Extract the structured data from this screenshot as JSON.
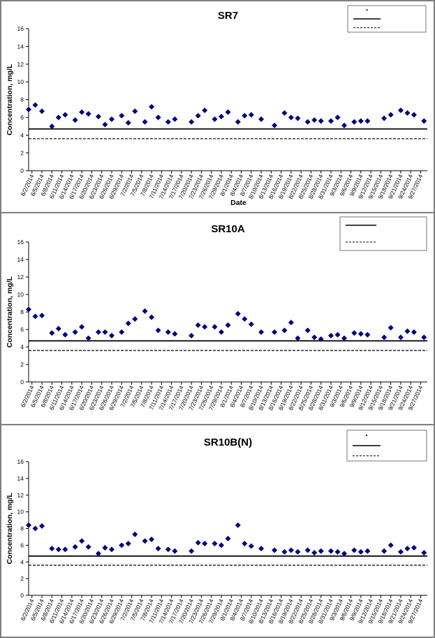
{
  "colors": {
    "marker": "#000080",
    "line": "#000000",
    "frame": "#7f7f7f"
  },
  "chart_data": [
    {
      "type": "scatter",
      "title": "SR7",
      "xlabel": "Date",
      "ylabel": "Concentration, mg/L",
      "ylim": [
        0,
        16
      ],
      "yticks": [
        0,
        2,
        4,
        6,
        8,
        10,
        12,
        14,
        16
      ],
      "x_tick_labels": [
        "6/2/2014",
        "6/5/2014",
        "6/8/2014",
        "6/11/2014",
        "6/14/2014",
        "6/17/2014",
        "6/20/2014",
        "6/23/2014",
        "6/26/2014",
        "6/29/2014",
        "7/2/2014",
        "7/5/2014",
        "7/8/2014",
        "7/11/2014",
        "7/14/2014",
        "7/17/2014",
        "7/20/2014",
        "7/23/2014",
        "7/26/2014",
        "7/29/2014",
        "8/1/2014",
        "8/4/2014",
        "8/7/2014",
        "8/10/2014",
        "8/13/2014",
        "8/16/2014",
        "8/19/2014",
        "8/22/2014",
        "8/25/2014",
        "8/28/2014",
        "8/31/2014",
        "9/3/2014",
        "9/6/2014",
        "9/9/2014",
        "9/12/2014",
        "9/15/2014",
        "9/18/2014",
        "9/21/2014",
        "9/24/2014",
        "9/27/2014"
      ],
      "xlim": [
        "6/1/2014",
        "9/29/2014"
      ],
      "grid": false,
      "legend_position": "top-right",
      "legend_entries": [
        "",
        "",
        ""
      ],
      "reference_lines": [
        {
          "style": "solid",
          "y": 4.7
        },
        {
          "style": "dashed",
          "y": 3.6
        }
      ],
      "series": [
        {
          "points": [
            [
              "6/1/2014",
              6.9
            ],
            [
              "6/3/2014",
              7.4
            ],
            [
              "6/5/2014",
              6.7
            ],
            [
              "6/8/2014",
              5.0
            ],
            [
              "6/10/2014",
              6.0
            ],
            [
              "6/12/2014",
              6.3
            ],
            [
              "6/15/2014",
              5.7
            ],
            [
              "6/17/2014",
              6.6
            ],
            [
              "6/19/2014",
              6.4
            ],
            [
              "6/22/2014",
              6.1
            ],
            [
              "6/24/2014",
              5.2
            ],
            [
              "6/26/2014",
              5.8
            ],
            [
              "6/29/2014",
              6.2
            ],
            [
              "7/1/2014",
              5.4
            ],
            [
              "7/3/2014",
              6.7
            ],
            [
              "7/6/2014",
              5.5
            ],
            [
              "7/8/2014",
              7.2
            ],
            [
              "7/10/2014",
              6.0
            ],
            [
              "7/13/2014",
              5.5
            ],
            [
              "7/15/2014",
              5.8
            ],
            [
              "7/20/2014",
              5.5
            ],
            [
              "7/22/2014",
              6.2
            ],
            [
              "7/24/2014",
              6.8
            ],
            [
              "7/27/2014",
              5.8
            ],
            [
              "7/29/2014",
              6.1
            ],
            [
              "7/31/2014",
              6.6
            ],
            [
              "8/3/2014",
              5.5
            ],
            [
              "8/5/2014",
              6.2
            ],
            [
              "8/7/2014",
              6.3
            ],
            [
              "8/10/2014",
              5.8
            ],
            [
              "8/14/2014",
              5.1
            ],
            [
              "8/17/2014",
              6.5
            ],
            [
              "8/19/2014",
              6.0
            ],
            [
              "8/21/2014",
              5.9
            ],
            [
              "8/24/2014",
              5.5
            ],
            [
              "8/26/2014",
              5.7
            ],
            [
              "8/28/2014",
              5.6
            ],
            [
              "8/31/2014",
              5.6
            ],
            [
              "9/2/2014",
              6.0
            ],
            [
              "9/4/2014",
              5.1
            ],
            [
              "9/7/2014",
              5.5
            ],
            [
              "9/9/2014",
              5.6
            ],
            [
              "9/11/2014",
              5.6
            ],
            [
              "9/16/2014",
              5.9
            ],
            [
              "9/18/2014",
              6.3
            ],
            [
              "9/21/2014",
              6.8
            ],
            [
              "9/23/2014",
              6.5
            ],
            [
              "9/25/2014",
              6.3
            ],
            [
              "9/28/2014",
              5.6
            ]
          ]
        }
      ]
    },
    {
      "type": "scatter",
      "title": "SR10A",
      "xlabel": "",
      "ylabel": "Concentration, mg/L",
      "ylim": [
        0,
        16
      ],
      "yticks": [
        0,
        2,
        4,
        6,
        8,
        10,
        12,
        14,
        16
      ],
      "x_tick_labels": [
        "6/2/2014",
        "6/5/2014",
        "6/8/2014",
        "6/11/2014",
        "6/14/2014",
        "6/17/2014",
        "6/20/2014",
        "6/23/2014",
        "6/26/2014",
        "6/29/2014",
        "7/2/2014",
        "7/5/2014",
        "7/8/2014",
        "7/11/2014",
        "7/14/2014",
        "7/17/2014",
        "7/20/2014",
        "7/23/2014",
        "7/26/2014",
        "7/29/2014",
        "8/1/2014",
        "8/4/2014",
        "8/7/2014",
        "8/10/2014",
        "8/13/2014",
        "8/16/2014",
        "8/19/2014",
        "8/22/2014",
        "8/25/2014",
        "8/28/2014",
        "8/31/2014",
        "9/3/2014",
        "9/6/2014",
        "9/9/2014",
        "9/12/2014",
        "9/15/2014",
        "9/18/2014",
        "9/21/2014",
        "9/24/2014",
        "9/27/2014"
      ],
      "xlim": [
        "6/1/2014",
        "9/29/2014"
      ],
      "grid": false,
      "legend_position": "top-right",
      "legend_entries": [
        "",
        ""
      ],
      "reference_lines": [
        {
          "style": "solid",
          "y": 4.7
        },
        {
          "style": "dashed",
          "y": 3.6
        }
      ],
      "series": [
        {
          "points": [
            [
              "6/1/2014",
              8.3
            ],
            [
              "6/3/2014",
              7.5
            ],
            [
              "6/5/2014",
              7.6
            ],
            [
              "6/8/2014",
              5.6
            ],
            [
              "6/10/2014",
              6.1
            ],
            [
              "6/12/2014",
              5.4
            ],
            [
              "6/15/2014",
              5.7
            ],
            [
              "6/17/2014",
              6.3
            ],
            [
              "6/19/2014",
              5.0
            ],
            [
              "6/22/2014",
              5.7
            ],
            [
              "6/24/2014",
              5.7
            ],
            [
              "6/26/2014",
              5.3
            ],
            [
              "6/29/2014",
              5.7
            ],
            [
              "7/1/2014",
              6.7
            ],
            [
              "7/3/2014",
              7.2
            ],
            [
              "7/6/2014",
              8.1
            ],
            [
              "7/8/2014",
              7.4
            ],
            [
              "7/10/2014",
              5.9
            ],
            [
              "7/13/2014",
              5.7
            ],
            [
              "7/15/2014",
              5.5
            ],
            [
              "7/20/2014",
              5.3
            ],
            [
              "7/22/2014",
              6.5
            ],
            [
              "7/24/2014",
              6.3
            ],
            [
              "7/27/2014",
              6.3
            ],
            [
              "7/29/2014",
              5.7
            ],
            [
              "7/31/2014",
              6.5
            ],
            [
              "8/3/2014",
              7.8
            ],
            [
              "8/5/2014",
              7.2
            ],
            [
              "8/7/2014",
              6.6
            ],
            [
              "8/10/2014",
              5.7
            ],
            [
              "8/14/2014",
              5.7
            ],
            [
              "8/17/2014",
              5.9
            ],
            [
              "8/19/2014",
              6.8
            ],
            [
              "8/21/2014",
              5.0
            ],
            [
              "8/24/2014",
              5.9
            ],
            [
              "8/26/2014",
              5.1
            ],
            [
              "8/28/2014",
              4.9
            ],
            [
              "8/31/2014",
              5.3
            ],
            [
              "9/2/2014",
              5.4
            ],
            [
              "9/4/2014",
              5.0
            ],
            [
              "9/7/2014",
              5.6
            ],
            [
              "9/9/2014",
              5.5
            ],
            [
              "9/11/2014",
              5.4
            ],
            [
              "9/16/2014",
              5.1
            ],
            [
              "9/18/2014",
              6.2
            ],
            [
              "9/21/2014",
              5.1
            ],
            [
              "9/23/2014",
              5.8
            ],
            [
              "9/25/2014",
              5.7
            ],
            [
              "9/28/2014",
              5.1
            ]
          ]
        }
      ]
    },
    {
      "type": "scatter",
      "title": "SR10B(N)",
      "xlabel": "",
      "ylabel": "Concentration, mg/L",
      "ylim": [
        0,
        16
      ],
      "yticks": [
        0,
        2,
        4,
        6,
        8,
        10,
        12,
        14,
        16
      ],
      "x_tick_labels": [
        "6/2/2014",
        "6/5/2014",
        "6/8/2014",
        "6/11/2014",
        "6/14/2014",
        "6/17/2014",
        "6/20/2014",
        "6/23/2014",
        "6/26/2014",
        "6/29/2014",
        "7/2/2014",
        "7/5/2014",
        "7/8/2014",
        "7/11/2014",
        "7/14/2014",
        "7/17/2014",
        "7/20/2014",
        "7/23/2014",
        "7/26/2014",
        "7/29/2014",
        "8/1/2014",
        "8/4/2014",
        "8/7/2014",
        "8/10/2014",
        "8/13/2014",
        "8/16/2014",
        "8/19/2014",
        "8/22/2014",
        "8/25/2014",
        "8/28/2014",
        "8/31/2014",
        "9/3/2014",
        "9/6/2014",
        "9/9/2014",
        "9/12/2014",
        "9/15/2014",
        "9/18/2014",
        "9/21/2014",
        "9/24/2014",
        "9/27/2014"
      ],
      "xlim": [
        "6/1/2014",
        "9/29/2014"
      ],
      "grid": false,
      "legend_position": "top-right",
      "legend_entries": [
        "",
        "",
        ""
      ],
      "reference_lines": [
        {
          "style": "solid",
          "y": 4.7
        },
        {
          "style": "dashed",
          "y": 3.6
        }
      ],
      "series": [
        {
          "points": [
            [
              "6/1/2014",
              8.4
            ],
            [
              "6/3/2014",
              8.0
            ],
            [
              "6/5/2014",
              8.3
            ],
            [
              "6/8/2014",
              5.6
            ],
            [
              "6/10/2014",
              5.5
            ],
            [
              "6/12/2014",
              5.5
            ],
            [
              "6/15/2014",
              5.8
            ],
            [
              "6/17/2014",
              6.5
            ],
            [
              "6/19/2014",
              5.8
            ],
            [
              "6/22/2014",
              5.0
            ],
            [
              "6/24/2014",
              5.7
            ],
            [
              "6/26/2014",
              5.5
            ],
            [
              "6/29/2014",
              6.0
            ],
            [
              "7/1/2014",
              6.2
            ],
            [
              "7/3/2014",
              7.3
            ],
            [
              "7/6/2014",
              6.5
            ],
            [
              "7/8/2014",
              6.7
            ],
            [
              "7/10/2014",
              5.6
            ],
            [
              "7/13/2014",
              5.5
            ],
            [
              "7/15/2014",
              5.3
            ],
            [
              "7/20/2014",
              5.3
            ],
            [
              "7/22/2014",
              6.3
            ],
            [
              "7/24/2014",
              6.2
            ],
            [
              "7/27/2014",
              6.2
            ],
            [
              "7/29/2014",
              6.0
            ],
            [
              "7/31/2014",
              6.8
            ],
            [
              "8/3/2014",
              8.4
            ],
            [
              "8/5/2014",
              6.2
            ],
            [
              "8/7/2014",
              5.9
            ],
            [
              "8/10/2014",
              5.6
            ],
            [
              "8/14/2014",
              5.4
            ],
            [
              "8/17/2014",
              5.2
            ],
            [
              "8/19/2014",
              5.4
            ],
            [
              "8/21/2014",
              5.2
            ],
            [
              "8/24/2014",
              5.4
            ],
            [
              "8/26/2014",
              5.1
            ],
            [
              "8/28/2014",
              5.3
            ],
            [
              "8/31/2014",
              5.3
            ],
            [
              "9/2/2014",
              5.2
            ],
            [
              "9/4/2014",
              5.0
            ],
            [
              "9/7/2014",
              5.4
            ],
            [
              "9/9/2014",
              5.2
            ],
            [
              "9/11/2014",
              5.3
            ],
            [
              "9/16/2014",
              5.3
            ],
            [
              "9/18/2014",
              6.0
            ],
            [
              "9/21/2014",
              5.2
            ],
            [
              "9/23/2014",
              5.6
            ],
            [
              "9/25/2014",
              5.7
            ],
            [
              "9/28/2014",
              5.1
            ]
          ]
        }
      ]
    }
  ]
}
